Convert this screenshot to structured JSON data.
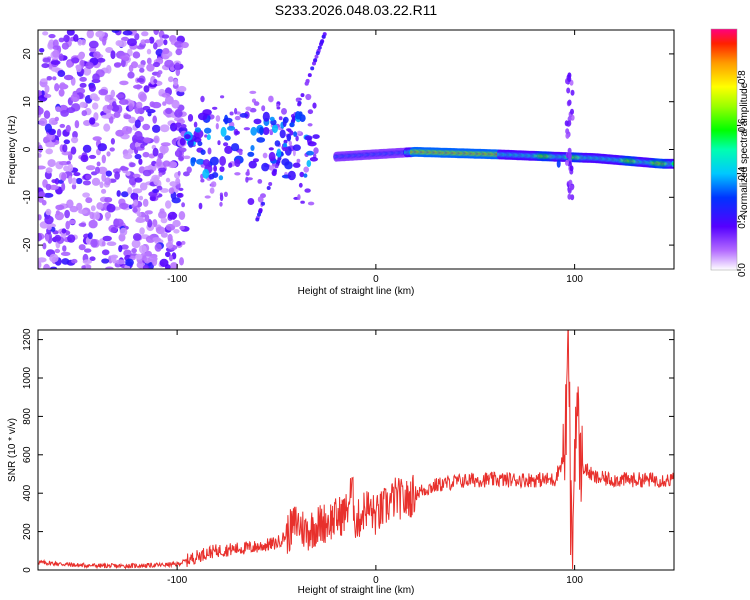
{
  "title": "S233.2026.048.03.22.R11",
  "chart_data": [
    {
      "type": "heatmap",
      "xlabel": "Height of straight line (km)",
      "ylabel": "Frequency (Hz)",
      "xlim": [
        -170,
        150
      ],
      "ylim": [
        -25,
        25
      ],
      "xticks": [
        "-100",
        "0",
        "100"
      ],
      "xtick_values": [
        -100,
        0,
        100
      ],
      "yticks": [
        "-20",
        "-10",
        "0",
        "10",
        "20"
      ],
      "ytick_values": [
        -20,
        -10,
        0,
        10,
        20
      ],
      "colorbar": {
        "label": "Normalized spectral amplitude",
        "ticks": [
          "0.0",
          "0.2",
          "0.4",
          "0.6",
          "0.8"
        ],
        "tick_values": [
          0.0,
          0.2,
          0.4,
          0.6,
          0.8
        ],
        "range": [
          0,
          1
        ]
      },
      "ridge": {
        "description_points": [
          [
            -20,
            -1.5
          ],
          [
            0,
            -1.0
          ],
          [
            20,
            -0.5
          ],
          [
            60,
            -1.0
          ],
          [
            90,
            -1.5
          ],
          [
            110,
            -1.8
          ],
          [
            130,
            -2.5
          ],
          [
            145,
            -3.0
          ]
        ],
        "peaks": [
          [
            40,
            -1.0,
            0.95
          ],
          [
            85,
            -1.6,
            0.85
          ],
          [
            100,
            -1.6,
            0.8
          ],
          [
            128,
            -2.5,
            0.85
          ],
          [
            143,
            -3.0,
            0.9
          ]
        ]
      }
    },
    {
      "type": "line",
      "xlabel": "Height of straight line (km)",
      "ylabel": "SNR (10 * v/v)",
      "xlim": [
        -170,
        150
      ],
      "ylim": [
        0,
        1250
      ],
      "xticks": [
        "-100",
        "0",
        "100"
      ],
      "xtick_values": [
        -100,
        0,
        100
      ],
      "yticks": [
        "0",
        "200",
        "400",
        "600",
        "800",
        "1000",
        "1200"
      ],
      "ytick_values": [
        0,
        200,
        400,
        600,
        800,
        1000,
        1200
      ],
      "series": [
        {
          "name": "SNR",
          "color": "#e8302c",
          "x": [
            -170,
            -150,
            -130,
            -110,
            -100,
            -90,
            -85,
            -80,
            -70,
            -60,
            -50,
            -45,
            -40,
            -35,
            -30,
            -25,
            -20,
            -15,
            -12,
            -10,
            -5,
            0,
            5,
            10,
            15,
            20,
            25,
            30,
            40,
            50,
            60,
            70,
            80,
            90,
            95,
            97,
            98,
            99,
            100,
            101,
            103,
            110,
            120,
            130,
            140,
            150
          ],
          "y": [
            40,
            25,
            20,
            25,
            30,
            70,
            90,
            100,
            110,
            120,
            140,
            180,
            250,
            200,
            230,
            250,
            270,
            300,
            420,
            240,
            330,
            280,
            330,
            380,
            360,
            400,
            420,
            440,
            460,
            470,
            470,
            470,
            470,
            470,
            600,
            1180,
            300,
            80,
            650,
            870,
            550,
            480,
            470,
            470,
            470,
            470
          ]
        }
      ]
    }
  ]
}
